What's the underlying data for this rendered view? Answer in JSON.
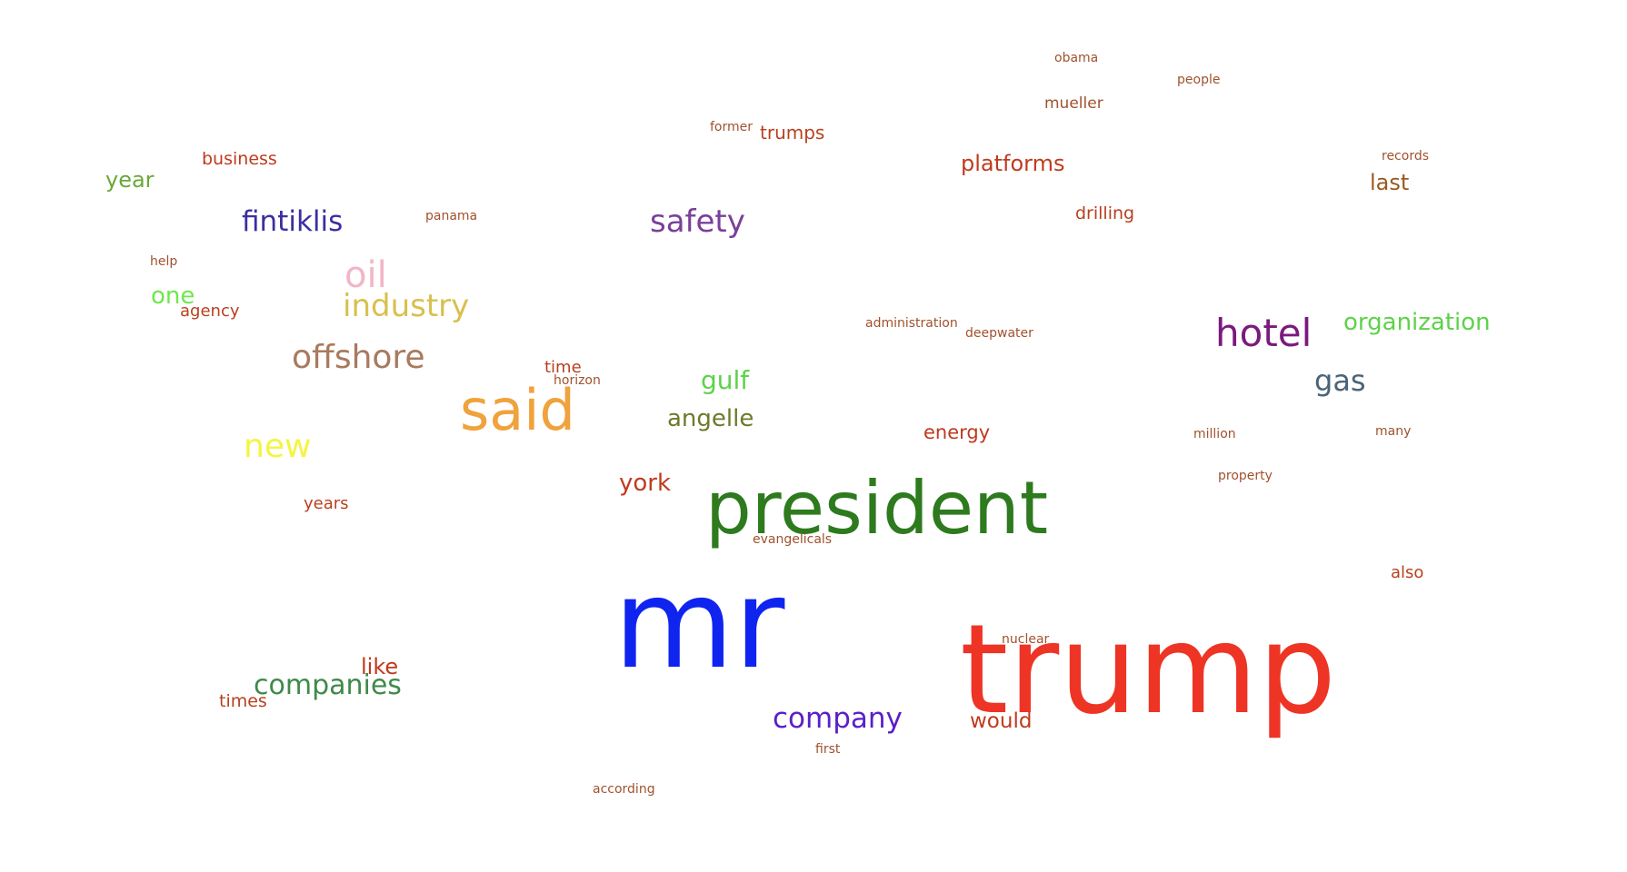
{
  "words": [
    {
      "text": "obama",
      "color": "#a0522d"
    },
    {
      "text": "people",
      "color": "#a0522d"
    },
    {
      "text": "mueller",
      "color": "#a0522d"
    },
    {
      "text": "former",
      "color": "#a0522d"
    },
    {
      "text": "trumps",
      "color": "#b8401e"
    },
    {
      "text": "platforms",
      "color": "#c03a1e"
    },
    {
      "text": "records",
      "color": "#a0522d"
    },
    {
      "text": "last",
      "color": "#9a5a20"
    },
    {
      "text": "business",
      "color": "#c03a1e"
    },
    {
      "text": "year",
      "color": "#6aa838"
    },
    {
      "text": "fintiklis",
      "color": "#3a2fa0"
    },
    {
      "text": "panama",
      "color": "#a0522d"
    },
    {
      "text": "safety",
      "color": "#7a3f9a"
    },
    {
      "text": "drilling",
      "color": "#b8401e"
    },
    {
      "text": "help",
      "color": "#a0522d"
    },
    {
      "text": "oil",
      "color": "#f2b6c6"
    },
    {
      "text": "one",
      "color": "#6ee84a"
    },
    {
      "text": "agency",
      "color": "#b8401e"
    },
    {
      "text": "industry",
      "color": "#d8c050"
    },
    {
      "text": "administration",
      "color": "#a0522d"
    },
    {
      "text": "deepwater",
      "color": "#a0522d"
    },
    {
      "text": "hotel",
      "color": "#7a1a7e"
    },
    {
      "text": "organization",
      "color": "#5ed24a"
    },
    {
      "text": "offshore",
      "color": "#a87a5e"
    },
    {
      "text": "time",
      "color": "#b8401e"
    },
    {
      "text": "horizon",
      "color": "#a0522d"
    },
    {
      "text": "gulf",
      "color": "#5ed24a"
    },
    {
      "text": "gas",
      "color": "#4a6478"
    },
    {
      "text": "said",
      "color": "#f0a23c"
    },
    {
      "text": "angelle",
      "color": "#6e7a2a"
    },
    {
      "text": "energy",
      "color": "#c03a1e"
    },
    {
      "text": "million",
      "color": "#a0522d"
    },
    {
      "text": "many",
      "color": "#a0522d"
    },
    {
      "text": "new",
      "color": "#f4f444"
    },
    {
      "text": "york",
      "color": "#c03a1e"
    },
    {
      "text": "president",
      "color": "#2e7a1e"
    },
    {
      "text": "property",
      "color": "#a0522d"
    },
    {
      "text": "years",
      "color": "#b8401e"
    },
    {
      "text": "evangelicals",
      "color": "#a0522d"
    },
    {
      "text": "also",
      "color": "#b8401e"
    },
    {
      "text": "mr",
      "color": "#1024f0"
    },
    {
      "text": "nuclear",
      "color": "#a0522d"
    },
    {
      "text": "trump",
      "color": "#ee3424"
    },
    {
      "text": "like",
      "color": "#c03a1e"
    },
    {
      "text": "companies",
      "color": "#3e8a4a"
    },
    {
      "text": "times",
      "color": "#b8401e"
    },
    {
      "text": "company",
      "color": "#5a20c8"
    },
    {
      "text": "would",
      "color": "#c03a1e"
    },
    {
      "text": "first",
      "color": "#a0522d"
    },
    {
      "text": "according",
      "color": "#a0522d"
    }
  ]
}
